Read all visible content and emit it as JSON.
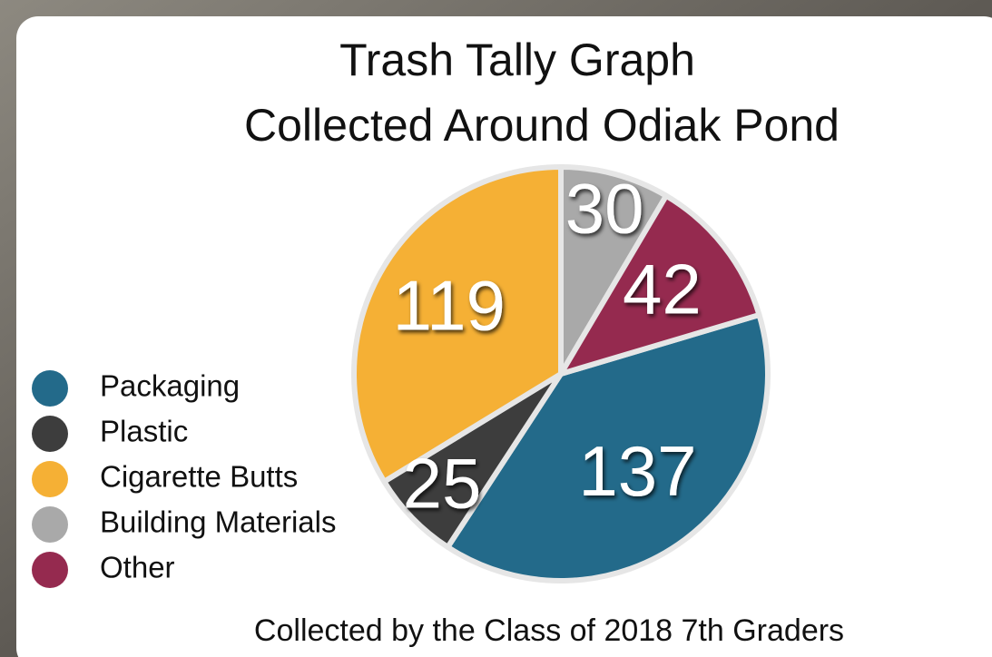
{
  "chart_data": {
    "type": "pie",
    "title": "Trash Tally Graph",
    "subtitle": "Collected Around Odiak Pond",
    "caption": "Collected by the Class of 2018 7th Graders",
    "categories": [
      "Packaging",
      "Plastic",
      "Cigarette Butts",
      "Building Materials",
      "Other"
    ],
    "values": [
      137,
      25,
      119,
      30,
      42
    ],
    "colors": [
      "#236a8a",
      "#3d3d3d",
      "#f5b035",
      "#a9a9a9",
      "#952a4f"
    ],
    "legend": "left"
  }
}
